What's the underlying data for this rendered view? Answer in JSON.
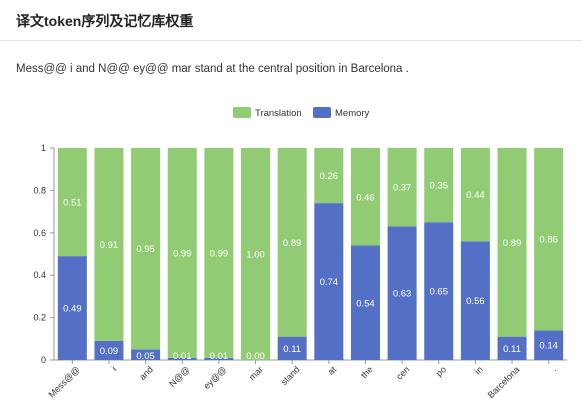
{
  "header": {
    "title": "译文token序列及记忆库权重"
  },
  "sentence": "Mess@@ i and N@@ ey@@ mar stand at the central position in Barcelona .",
  "chart_data": {
    "type": "bar",
    "stacked": true,
    "categories": [
      "Mess@@",
      "i",
      "and",
      "N@@",
      "ey@@",
      "mar",
      "stand",
      "at",
      "the",
      "cen",
      "po",
      "in",
      "Barcelona",
      "."
    ],
    "series": [
      {
        "name": "Memory",
        "color": "#5470c6",
        "values": [
          0.49,
          0.09,
          0.05,
          0.01,
          0.01,
          0.0,
          0.11,
          0.74,
          0.54,
          0.63,
          0.65,
          0.56,
          0.11,
          0.14
        ]
      },
      {
        "name": "Translation",
        "color": "#91cc75",
        "values": [
          0.51,
          0.91,
          0.95,
          0.99,
          0.99,
          1.0,
          0.89,
          0.26,
          0.46,
          0.37,
          0.35,
          0.44,
          0.89,
          0.86
        ]
      }
    ],
    "labels": {
      "Memory": [
        "0.49",
        "0.09",
        "0.05",
        "0.01",
        "0.01",
        "0.00",
        "0.11",
        "0.74",
        "0.54",
        "0.63",
        "0.65",
        "0.56",
        "0.11",
        "0.14"
      ],
      "Translation": [
        "0.51",
        "0.91",
        "0.95",
        "0.99",
        "0.99",
        "1.00",
        "0.89",
        "0.26",
        "0.46",
        "0.37",
        "0.35",
        "0.44",
        "0.89",
        "0.86"
      ]
    },
    "legend": [
      "Translation",
      "Memory"
    ],
    "legend_position": "top-center",
    "yticks": [
      "0",
      "0.2",
      "0.4",
      "0.6",
      "0.8",
      "1"
    ],
    "ylim": [
      0,
      1
    ],
    "title": "",
    "xlabel": "",
    "ylabel": ""
  }
}
